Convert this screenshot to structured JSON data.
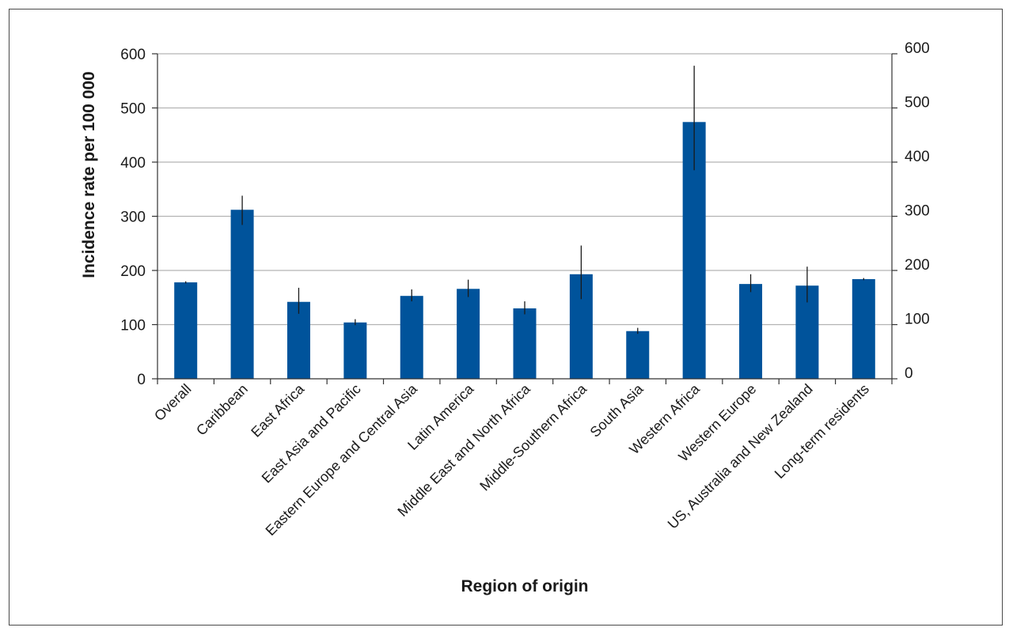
{
  "chart_data": {
    "type": "bar",
    "xlabel": "Region of origin",
    "ylabel": "Incidence rate per 100 000",
    "ylim": [
      0,
      600
    ],
    "yticks": [
      0,
      100,
      200,
      300,
      400,
      500,
      600
    ],
    "secondary_y_axis": true,
    "grid": "horizontal",
    "bar_color": "#00539b",
    "categories": [
      "Overall",
      "Caribbean",
      "East Africa",
      "East Asia and Pacific",
      "Eastern Europe and Central Asia",
      "Latin America",
      "Middle East and North Africa",
      "Middle-Southern Africa",
      "South Asia",
      "Western Africa",
      "Western Europe",
      "US, Australia and New Zealand",
      "Long-term residents"
    ],
    "values": [
      178,
      312,
      142,
      104,
      153,
      166,
      130,
      193,
      88,
      474,
      175,
      172,
      184
    ],
    "error_low": [
      176,
      284,
      120,
      99,
      143,
      151,
      119,
      147,
      83,
      385,
      160,
      141,
      182
    ],
    "error_high": [
      180,
      338,
      168,
      110,
      165,
      183,
      143,
      246,
      94,
      578,
      193,
      207,
      186
    ]
  }
}
